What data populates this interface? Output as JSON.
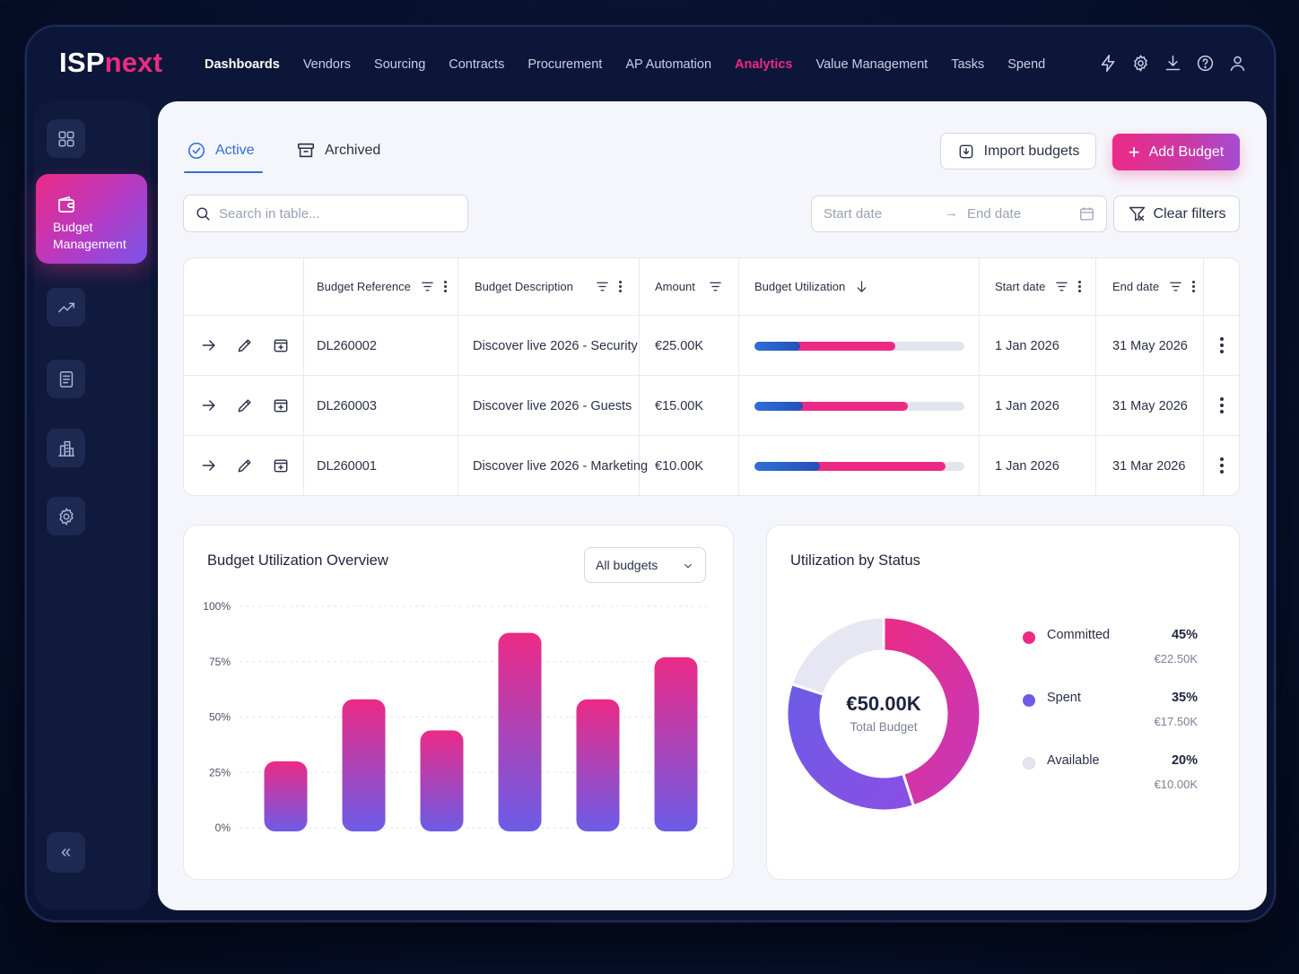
{
  "app": {
    "logo_part1": "ISP",
    "logo_part2": "next"
  },
  "nav": [
    {
      "label": "Dashboards"
    },
    {
      "label": "Vendors"
    },
    {
      "label": "Sourcing"
    },
    {
      "label": "Contracts"
    },
    {
      "label": "Procurement"
    },
    {
      "label": "AP Automation"
    },
    {
      "label": "Analytics"
    },
    {
      "label": "Value Management"
    },
    {
      "label": "Tasks"
    },
    {
      "label": "Spend"
    }
  ],
  "nav_active": "Analytics",
  "top_icons": [
    "lightning-icon",
    "gear-icon",
    "download-icon",
    "help-icon",
    "user-icon"
  ],
  "sidebar": {
    "items": [
      "grid-icon",
      "wallet-icon",
      "trend-icon",
      "document-icon",
      "building-icon",
      "gear-icon"
    ],
    "active_label": "Budget Management",
    "collapse_icon": "«"
  },
  "tabs": {
    "active": "Active",
    "archived": "Archived"
  },
  "toolbar": {
    "import_label": "Import budgets",
    "add_label": "Add Budget",
    "add_plus": "+",
    "search_placeholder": "Search in table...",
    "start_placeholder": "Start date",
    "end_placeholder": "End date",
    "range_arrow": "→",
    "clear_label": "Clear filters"
  },
  "table": {
    "headers": {
      "ref": "Budget Reference",
      "desc": "Budget Description",
      "amount": "Amount",
      "util": "Budget Utilization",
      "start": "Start date",
      "end": "End date"
    },
    "rows": [
      {
        "ref": "DL260002",
        "desc": "Discover live 2026 - Security",
        "amount": "€25.00K",
        "committed": 0.45,
        "spent": 0.22,
        "start": "1 Jan 2026",
        "end": "31 May 2026"
      },
      {
        "ref": "DL260003",
        "desc": "Discover live 2026 - Guests",
        "amount": "€15.00K",
        "committed": 0.5,
        "spent": 0.23,
        "start": "1 Jan 2026",
        "end": "31 May 2026"
      },
      {
        "ref": "DL260001",
        "desc": "Discover live 2026 - Marketing",
        "amount": "€10.00K",
        "committed": 0.6,
        "spent": 0.31,
        "start": "1 Jan 2026",
        "end": "31 Mar 2026"
      }
    ]
  },
  "colors": {
    "accent": "#ec2a86",
    "blue": "#2f6fd8",
    "violet": "#6c5ce7",
    "spent_blue": "#2450b8",
    "available": "#e3e5ee"
  },
  "overview": {
    "title": "Budget Utilization Overview",
    "select_value": "All budgets"
  },
  "status": {
    "title": "Utilization by Status",
    "center_value": "€50.00K",
    "center_label": "Total Budget",
    "items": [
      {
        "name": "Committed",
        "pct": "45%",
        "value": "€22.50K",
        "color": "#ec2a86"
      },
      {
        "name": "Spent",
        "pct": "35%",
        "value": "€17.50K",
        "color": "#6c5ce7"
      },
      {
        "name": "Available",
        "pct": "20%",
        "value": "€10.00K",
        "color": "#e3e5ee"
      }
    ]
  },
  "chart_data": [
    {
      "type": "bar",
      "title": "Budget Utilization Overview",
      "categories": [
        "",
        "",
        "",
        "",
        "",
        ""
      ],
      "values": [
        30,
        58,
        44,
        88,
        58,
        77
      ],
      "ylim": [
        0,
        100
      ],
      "yticks": [
        "100%",
        "75%",
        "50%",
        "25%",
        "0%"
      ],
      "grid": true
    },
    {
      "type": "pie",
      "title": "Utilization by Status",
      "labels": [
        "Committed",
        "Spent",
        "Available"
      ],
      "values": [
        45,
        35,
        20
      ]
    }
  ]
}
